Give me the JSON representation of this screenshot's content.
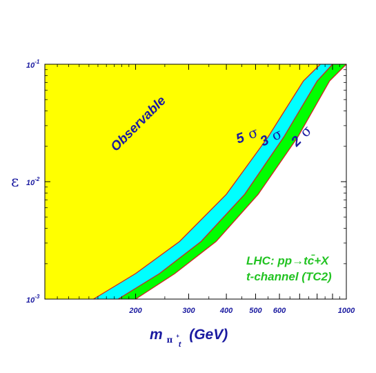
{
  "chart_data": {
    "type": "area",
    "title": "",
    "xlabel": {
      "main": "m",
      "sub_letter": "π",
      "sub_sup": "+",
      "sub_sub": "t",
      "unit": "(GeV)"
    },
    "ylabel": "ε",
    "x_scale": "log",
    "y_scale": "log",
    "xlim": [
      100,
      1000
    ],
    "ylim": [
      0.001,
      0.1
    ],
    "grid": false,
    "x_ticks": [
      {
        "value": 200,
        "label": "200"
      },
      {
        "value": 300,
        "label": "300"
      },
      {
        "value": 400,
        "label": "400"
      },
      {
        "value": 500,
        "label": "500"
      },
      {
        "value": 600,
        "label": "600"
      },
      {
        "value": 1000,
        "label": "1000"
      }
    ],
    "y_ticks": [
      {
        "value": 0.001,
        "base": "10",
        "exp": "-3"
      },
      {
        "value": 0.01,
        "base": "10",
        "exp": "-2"
      },
      {
        "value": 0.1,
        "base": "10",
        "exp": "-1"
      }
    ],
    "series": [
      {
        "name": "5 σ",
        "label_number": "5",
        "label_symbol": "σ",
        "fill": "#ffff00",
        "edge": "#d22020",
        "x": [
          145,
          200,
          280,
          400,
          550,
          720,
          820
        ],
        "y": [
          0.001,
          0.00165,
          0.0031,
          0.0078,
          0.024,
          0.072,
          0.1
        ]
      },
      {
        "name": "3 σ",
        "label_number": "3",
        "label_symbol": "σ",
        "fill": "#00ffff",
        "edge": "#d22020",
        "x": [
          175,
          240,
          330,
          460,
          620,
          800,
          900
        ],
        "y": [
          0.001,
          0.00165,
          0.0031,
          0.0078,
          0.024,
          0.072,
          0.1
        ]
      },
      {
        "name": "2 σ",
        "label_number": "2",
        "label_symbol": "σ",
        "fill": "#00ff00",
        "edge": "#d22020",
        "x": [
          200,
          270,
          370,
          510,
          690,
          880,
          1000
        ],
        "y": [
          0.001,
          0.00165,
          0.0031,
          0.0078,
          0.024,
          0.072,
          0.1
        ]
      }
    ],
    "region_label": "Observable",
    "annotation_line1": "LHC: pp→tc̄+X",
    "annotation_line2": "t-channel (TC2)"
  }
}
